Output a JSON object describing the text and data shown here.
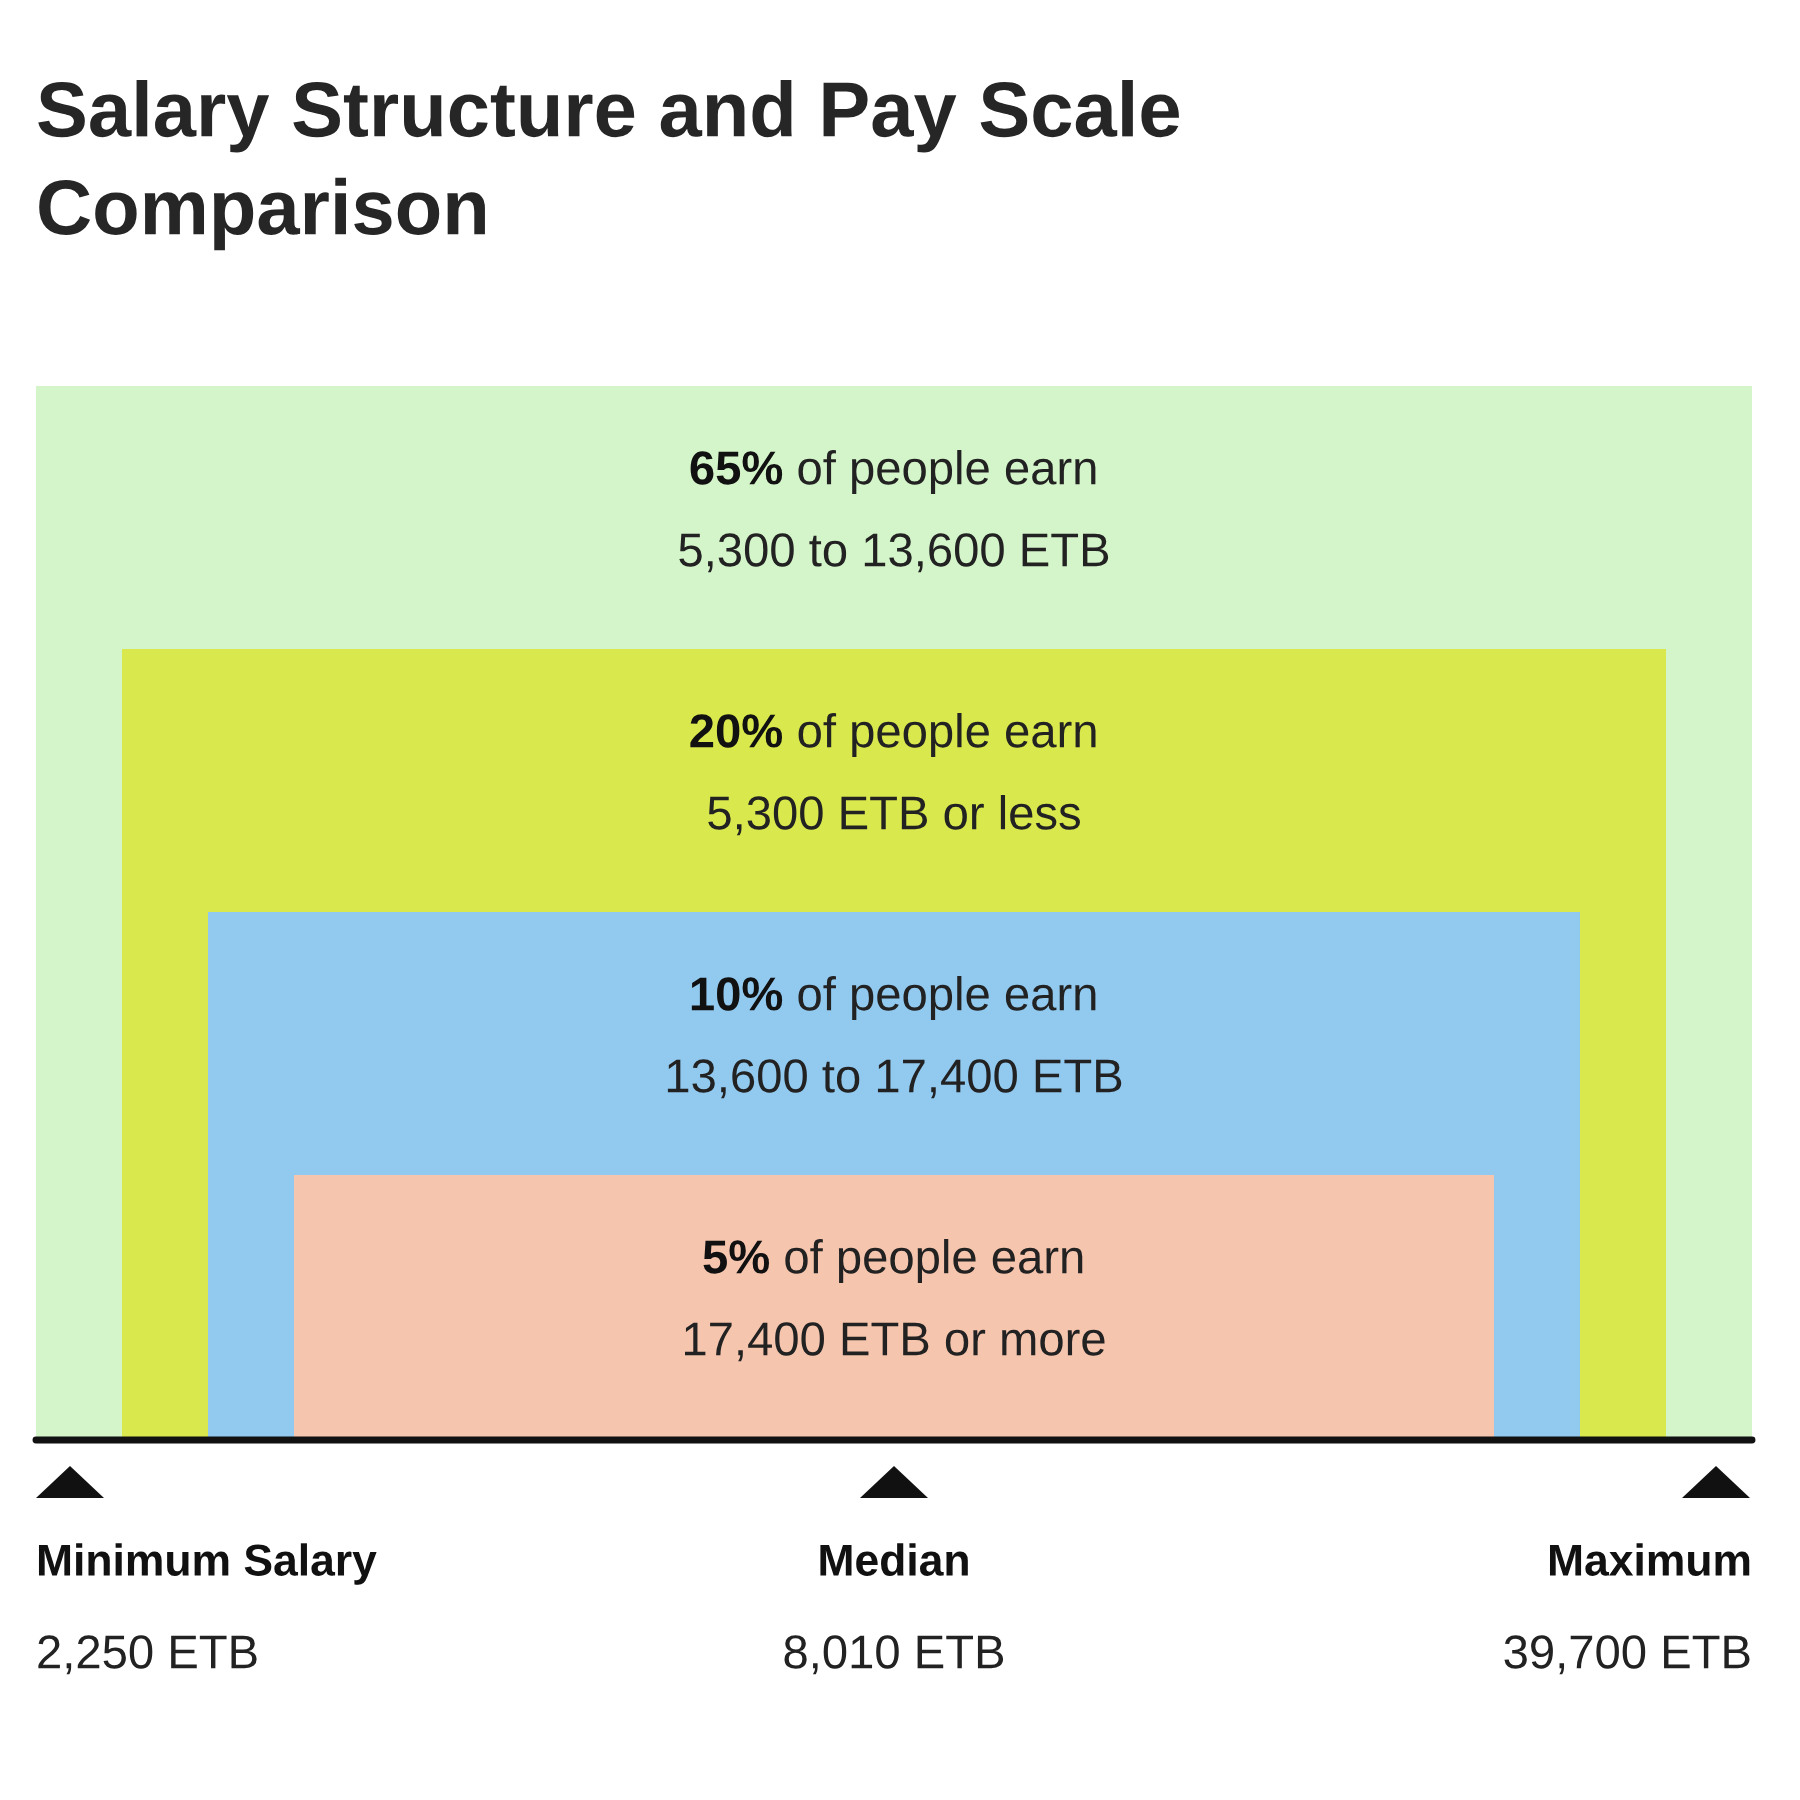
{
  "chart_data": {
    "type": "other",
    "title": "Salary Structure and Pay Scale\nComparison",
    "categories": [
      "of people earn\n5,300 to 13,600 ETB",
      "of people earn\n5,300 ETB or less",
      "of people earn\n13,600 to 17,400 ETB",
      "of people earn\n17,400 ETB or more"
    ],
    "values": [
      65,
      20,
      10,
      5
    ],
    "value_labels": [
      "65%",
      "20%",
      "10%",
      "5%"
    ],
    "colors": [
      "#d4f5c9",
      "#d9e84c",
      "#91c9ef",
      "#f5c5ae"
    ],
    "annotations": [
      "Minimum Salary",
      "2,250 ETB",
      "Median",
      "8,010 ETB",
      "Maximum",
      "39,700 ETB"
    ]
  }
}
